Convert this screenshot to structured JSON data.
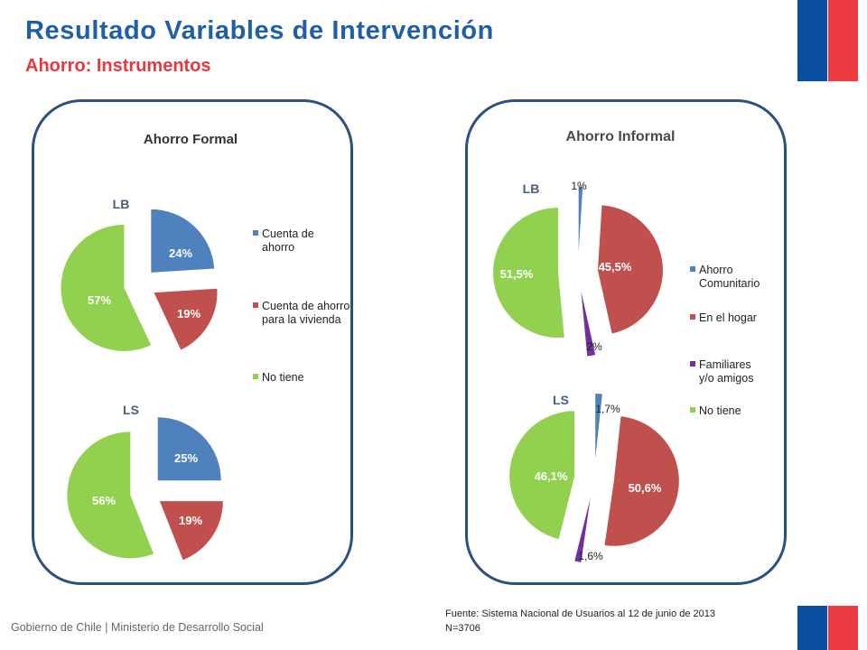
{
  "slide": {
    "title": "Resultado Variables de Intervención",
    "subtitle": "Ahorro: Instrumentos",
    "footnote_source": "Fuente: Sistema Nacional de Usuarios al 12 de junio de 2013",
    "footnote_n": "N=3706",
    "footer": "Gobierno de Chile | Ministerio de Desarrollo Social"
  },
  "colors": {
    "title": "#1f5fa7",
    "subtitle": "#e8383d",
    "flag_blue": "#0a4ea1",
    "flag_red": "#ec3b41",
    "panel_border": "#2f4f7f",
    "slice_blue": "#4f81bd",
    "slice_red": "#c0504d",
    "slice_purple": "#7030a0",
    "slice_green": "#92d050"
  },
  "chart_data": [
    {
      "type": "pie",
      "title": "Ahorro Formal",
      "subtitle": "LB",
      "categories": [
        "Cuenta de ahorro",
        "Cuenta de ahorro para la vivienda",
        "No tiene"
      ],
      "values": [
        24,
        19,
        57
      ],
      "labels": [
        "24%",
        "19%",
        "57%"
      ],
      "legend": [
        "Cuenta de ahorro",
        "Cuenta de ahorro para la vivienda",
        "No tiene"
      ],
      "legend_position": "right"
    },
    {
      "type": "pie",
      "title": "",
      "subtitle": "LS",
      "categories": [
        "Cuenta de ahorro",
        "Cuenta de ahorro para la vivienda",
        "No tiene"
      ],
      "values": [
        25,
        19,
        56
      ],
      "labels": [
        "25%",
        "19%",
        "56%"
      ]
    },
    {
      "type": "pie",
      "title": "Ahorro Informal",
      "subtitle": "LB",
      "categories": [
        "Ahorro Comunitario",
        "En el hogar",
        "Familiares y/o amigos",
        "No tiene"
      ],
      "values": [
        1,
        45.5,
        2,
        51.5
      ],
      "labels": [
        "1%",
        "45,5%",
        "2%",
        "51,5%"
      ],
      "legend": [
        "Ahorro Comunitario",
        "En el hogar",
        "Familiares y/o amigos",
        "No tiene"
      ],
      "legend_position": "right"
    },
    {
      "type": "pie",
      "title": "",
      "subtitle": "LS",
      "categories": [
        "Ahorro Comunitario",
        "En el hogar",
        "Familiares y/o amigos",
        "No tiene"
      ],
      "values": [
        1.7,
        50.6,
        1.6,
        46.1
      ],
      "labels": [
        "1,7%",
        "50,6%",
        "1,6%",
        "46,1%"
      ]
    }
  ]
}
